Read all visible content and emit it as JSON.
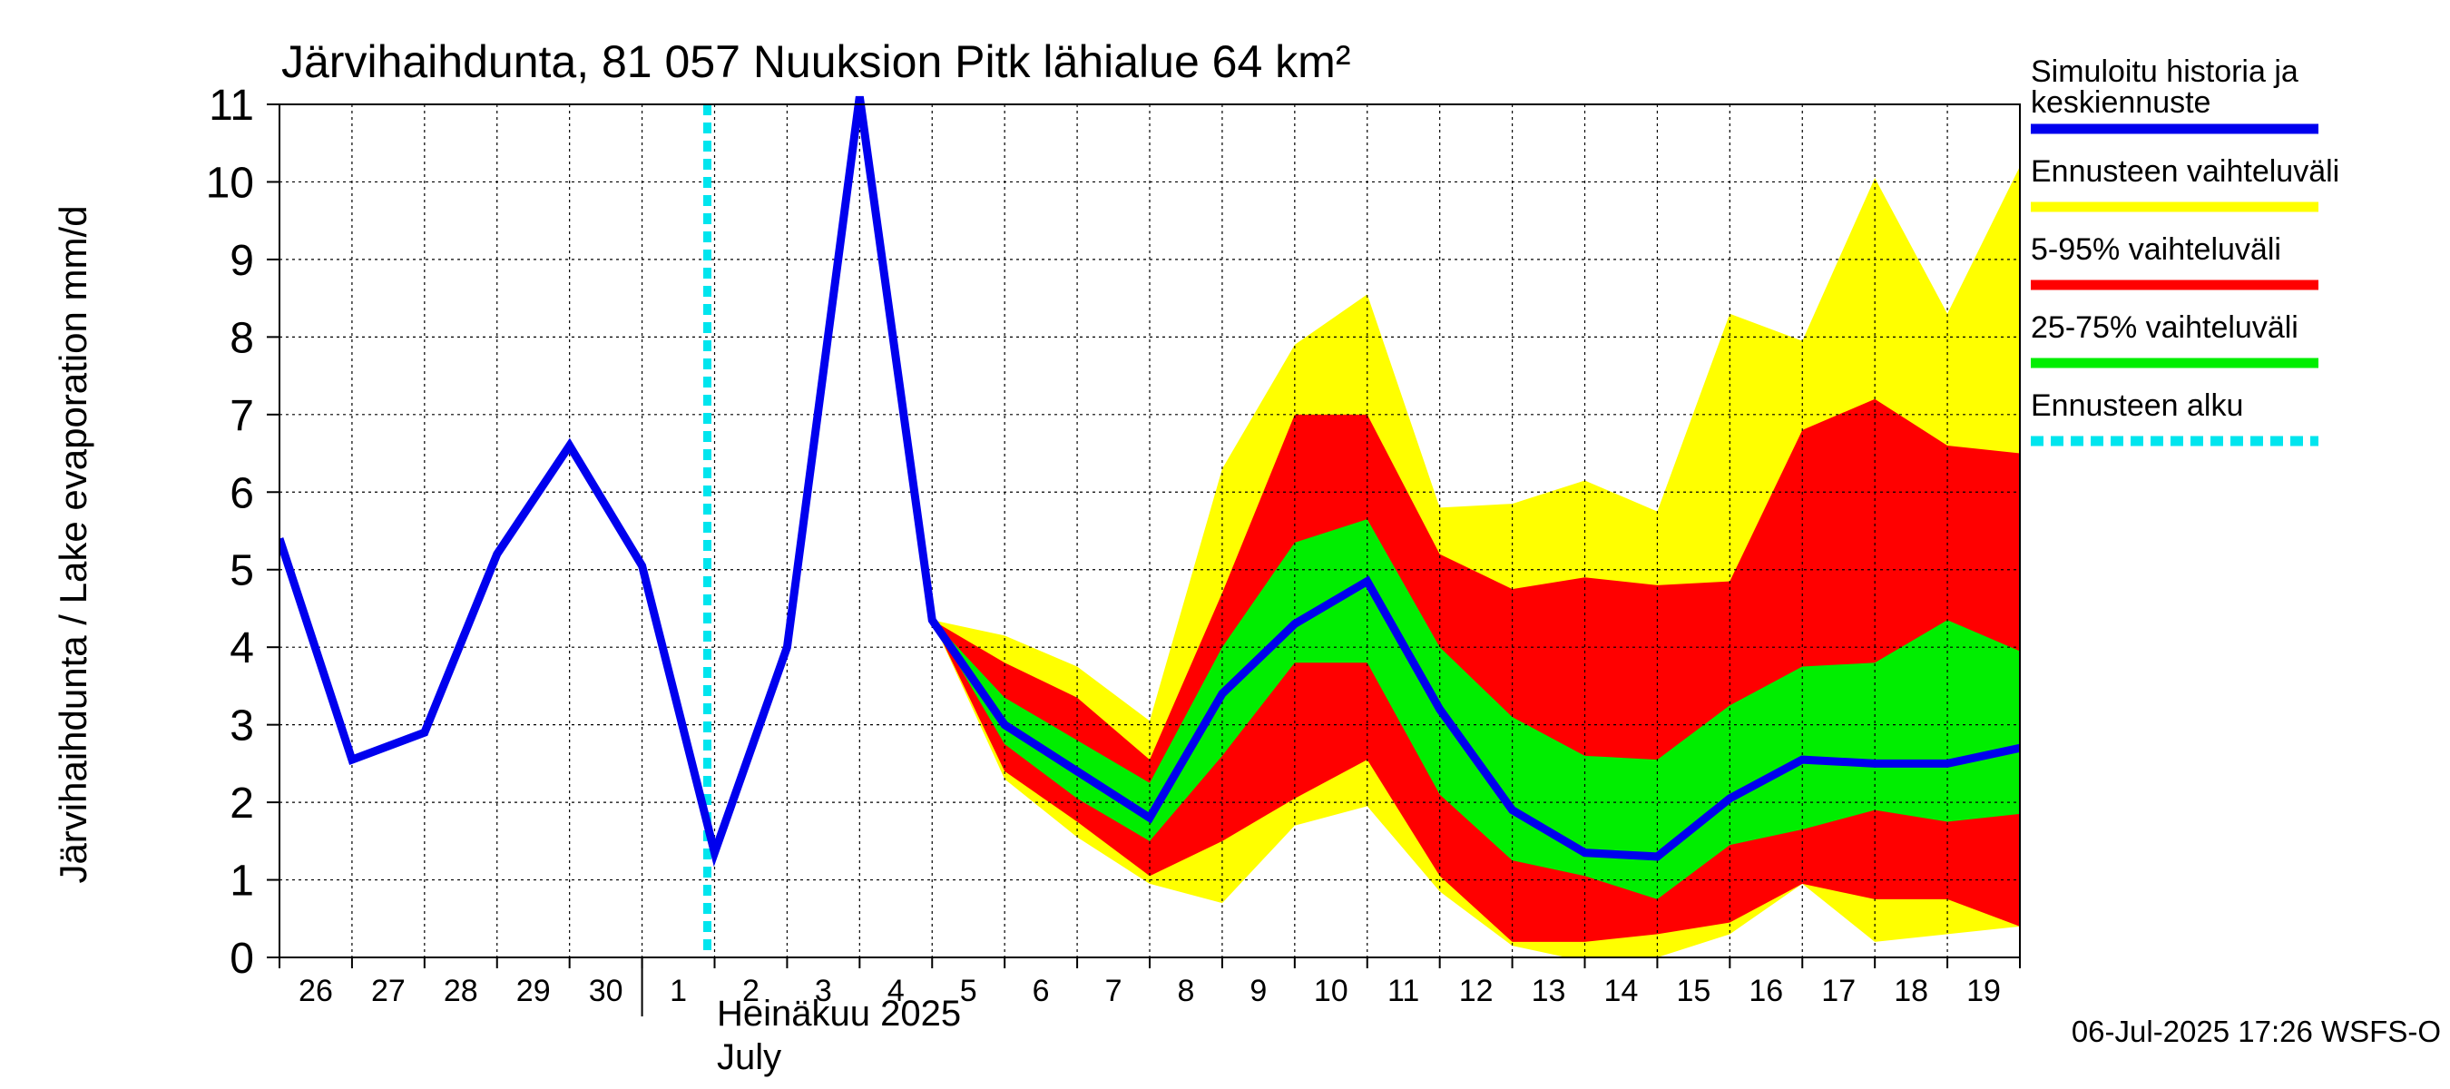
{
  "chart_data": {
    "type": "area",
    "title": "Järvihaihdunta, 81 057 Nuuksion Pitk lähialue 64 km²",
    "ylabel": "Järvihaihdunta / Lake evaporation   mm/d",
    "ylim": [
      0,
      11
    ],
    "yticks": [
      0,
      1,
      2,
      3,
      4,
      5,
      6,
      7,
      8,
      9,
      10,
      11
    ],
    "x_day_labels": [
      "26",
      "27",
      "28",
      "29",
      "30",
      "1",
      "2",
      "3",
      "4",
      "5",
      "6",
      "7",
      "8",
      "9",
      "10",
      "11",
      "12",
      "13",
      "14",
      "15",
      "16",
      "17",
      "18",
      "19"
    ],
    "month_label_fi": "Heinäkuu  2025",
    "month_label_en": "July",
    "grid": true,
    "legend_placement": "right",
    "forecast_start_day": 5.9,
    "series": [
      {
        "name": "Simuloitu historia ja keskiennuste",
        "color": "#0000ee",
        "x": [
          0,
          1,
          2,
          3,
          4,
          5,
          6,
          7,
          8,
          9,
          10,
          11,
          12,
          13,
          14,
          15,
          16,
          17,
          18,
          19,
          20,
          21,
          22,
          23,
          24
        ],
        "y": [
          5.4,
          2.55,
          2.9,
          5.2,
          6.6,
          5.05,
          1.35,
          4.0,
          11.1,
          4.35,
          3.0,
          2.4,
          1.8,
          3.4,
          4.3,
          4.85,
          3.2,
          1.9,
          1.35,
          1.3,
          2.05,
          2.55,
          2.5,
          2.5,
          2.7
        ]
      }
    ],
    "bands": [
      {
        "name": "Ennusteen vaihteluväli",
        "color": "#ffff00",
        "x": [
          9,
          10,
          11,
          12,
          13,
          14,
          15,
          16,
          17,
          18,
          19,
          20,
          21,
          22,
          23,
          24
        ],
        "upper": [
          4.35,
          4.15,
          3.75,
          3.05,
          6.3,
          7.9,
          8.55,
          5.8,
          5.85,
          6.15,
          5.75,
          8.3,
          7.95,
          10.05,
          8.3,
          10.2
        ],
        "lower": [
          4.35,
          2.3,
          1.55,
          0.95,
          0.7,
          1.7,
          1.95,
          0.85,
          0.15,
          -0.05,
          0.0,
          0.3,
          0.95,
          0.2,
          0.3,
          0.4
        ]
      },
      {
        "name": "5-95% vaihteluväli",
        "color": "#ff0000",
        "x": [
          9,
          10,
          11,
          12,
          13,
          14,
          15,
          16,
          17,
          18,
          19,
          20,
          21,
          22,
          23,
          24
        ],
        "upper": [
          4.35,
          3.8,
          3.35,
          2.55,
          4.7,
          7.0,
          7.0,
          5.2,
          4.75,
          4.9,
          4.8,
          4.85,
          6.8,
          7.2,
          6.6,
          6.5
        ],
        "lower": [
          4.35,
          2.4,
          1.75,
          1.05,
          1.5,
          2.05,
          2.55,
          1.05,
          0.2,
          0.2,
          0.3,
          0.45,
          0.95,
          0.75,
          0.75,
          0.4
        ]
      },
      {
        "name": "25-75% vaihteluväli",
        "color": "#00ee00",
        "x": [
          9,
          10,
          11,
          12,
          13,
          14,
          15,
          16,
          17,
          18,
          19,
          20,
          21,
          22,
          23,
          24
        ],
        "upper": [
          4.35,
          3.35,
          2.8,
          2.25,
          4.0,
          5.35,
          5.65,
          4.0,
          3.1,
          2.6,
          2.55,
          3.25,
          3.75,
          3.8,
          4.35,
          3.95
        ],
        "lower": [
          4.35,
          2.75,
          2.05,
          1.5,
          2.6,
          3.8,
          3.8,
          2.1,
          1.25,
          1.05,
          0.75,
          1.45,
          1.65,
          1.9,
          1.75,
          1.85
        ]
      }
    ],
    "legend": [
      {
        "label_line1": "Simuloitu historia ja",
        "label_line2": "keskiennuste",
        "color": "#0000ee",
        "style": "solid"
      },
      {
        "label_line1": "Ennusteen vaihteluväli",
        "label_line2": "",
        "color": "#ffff00",
        "style": "solid"
      },
      {
        "label_line1": "5-95% vaihteluväli",
        "label_line2": "",
        "color": "#ff0000",
        "style": "solid"
      },
      {
        "label_line1": "25-75% vaihteluväli",
        "label_line2": "",
        "color": "#00ee00",
        "style": "solid"
      },
      {
        "label_line1": "Ennusteen alku",
        "label_line2": "",
        "color": "#00e5ee",
        "style": "dashed"
      }
    ]
  },
  "footer": {
    "timestamp": "06-Jul-2025 17:26 WSFS-O"
  }
}
